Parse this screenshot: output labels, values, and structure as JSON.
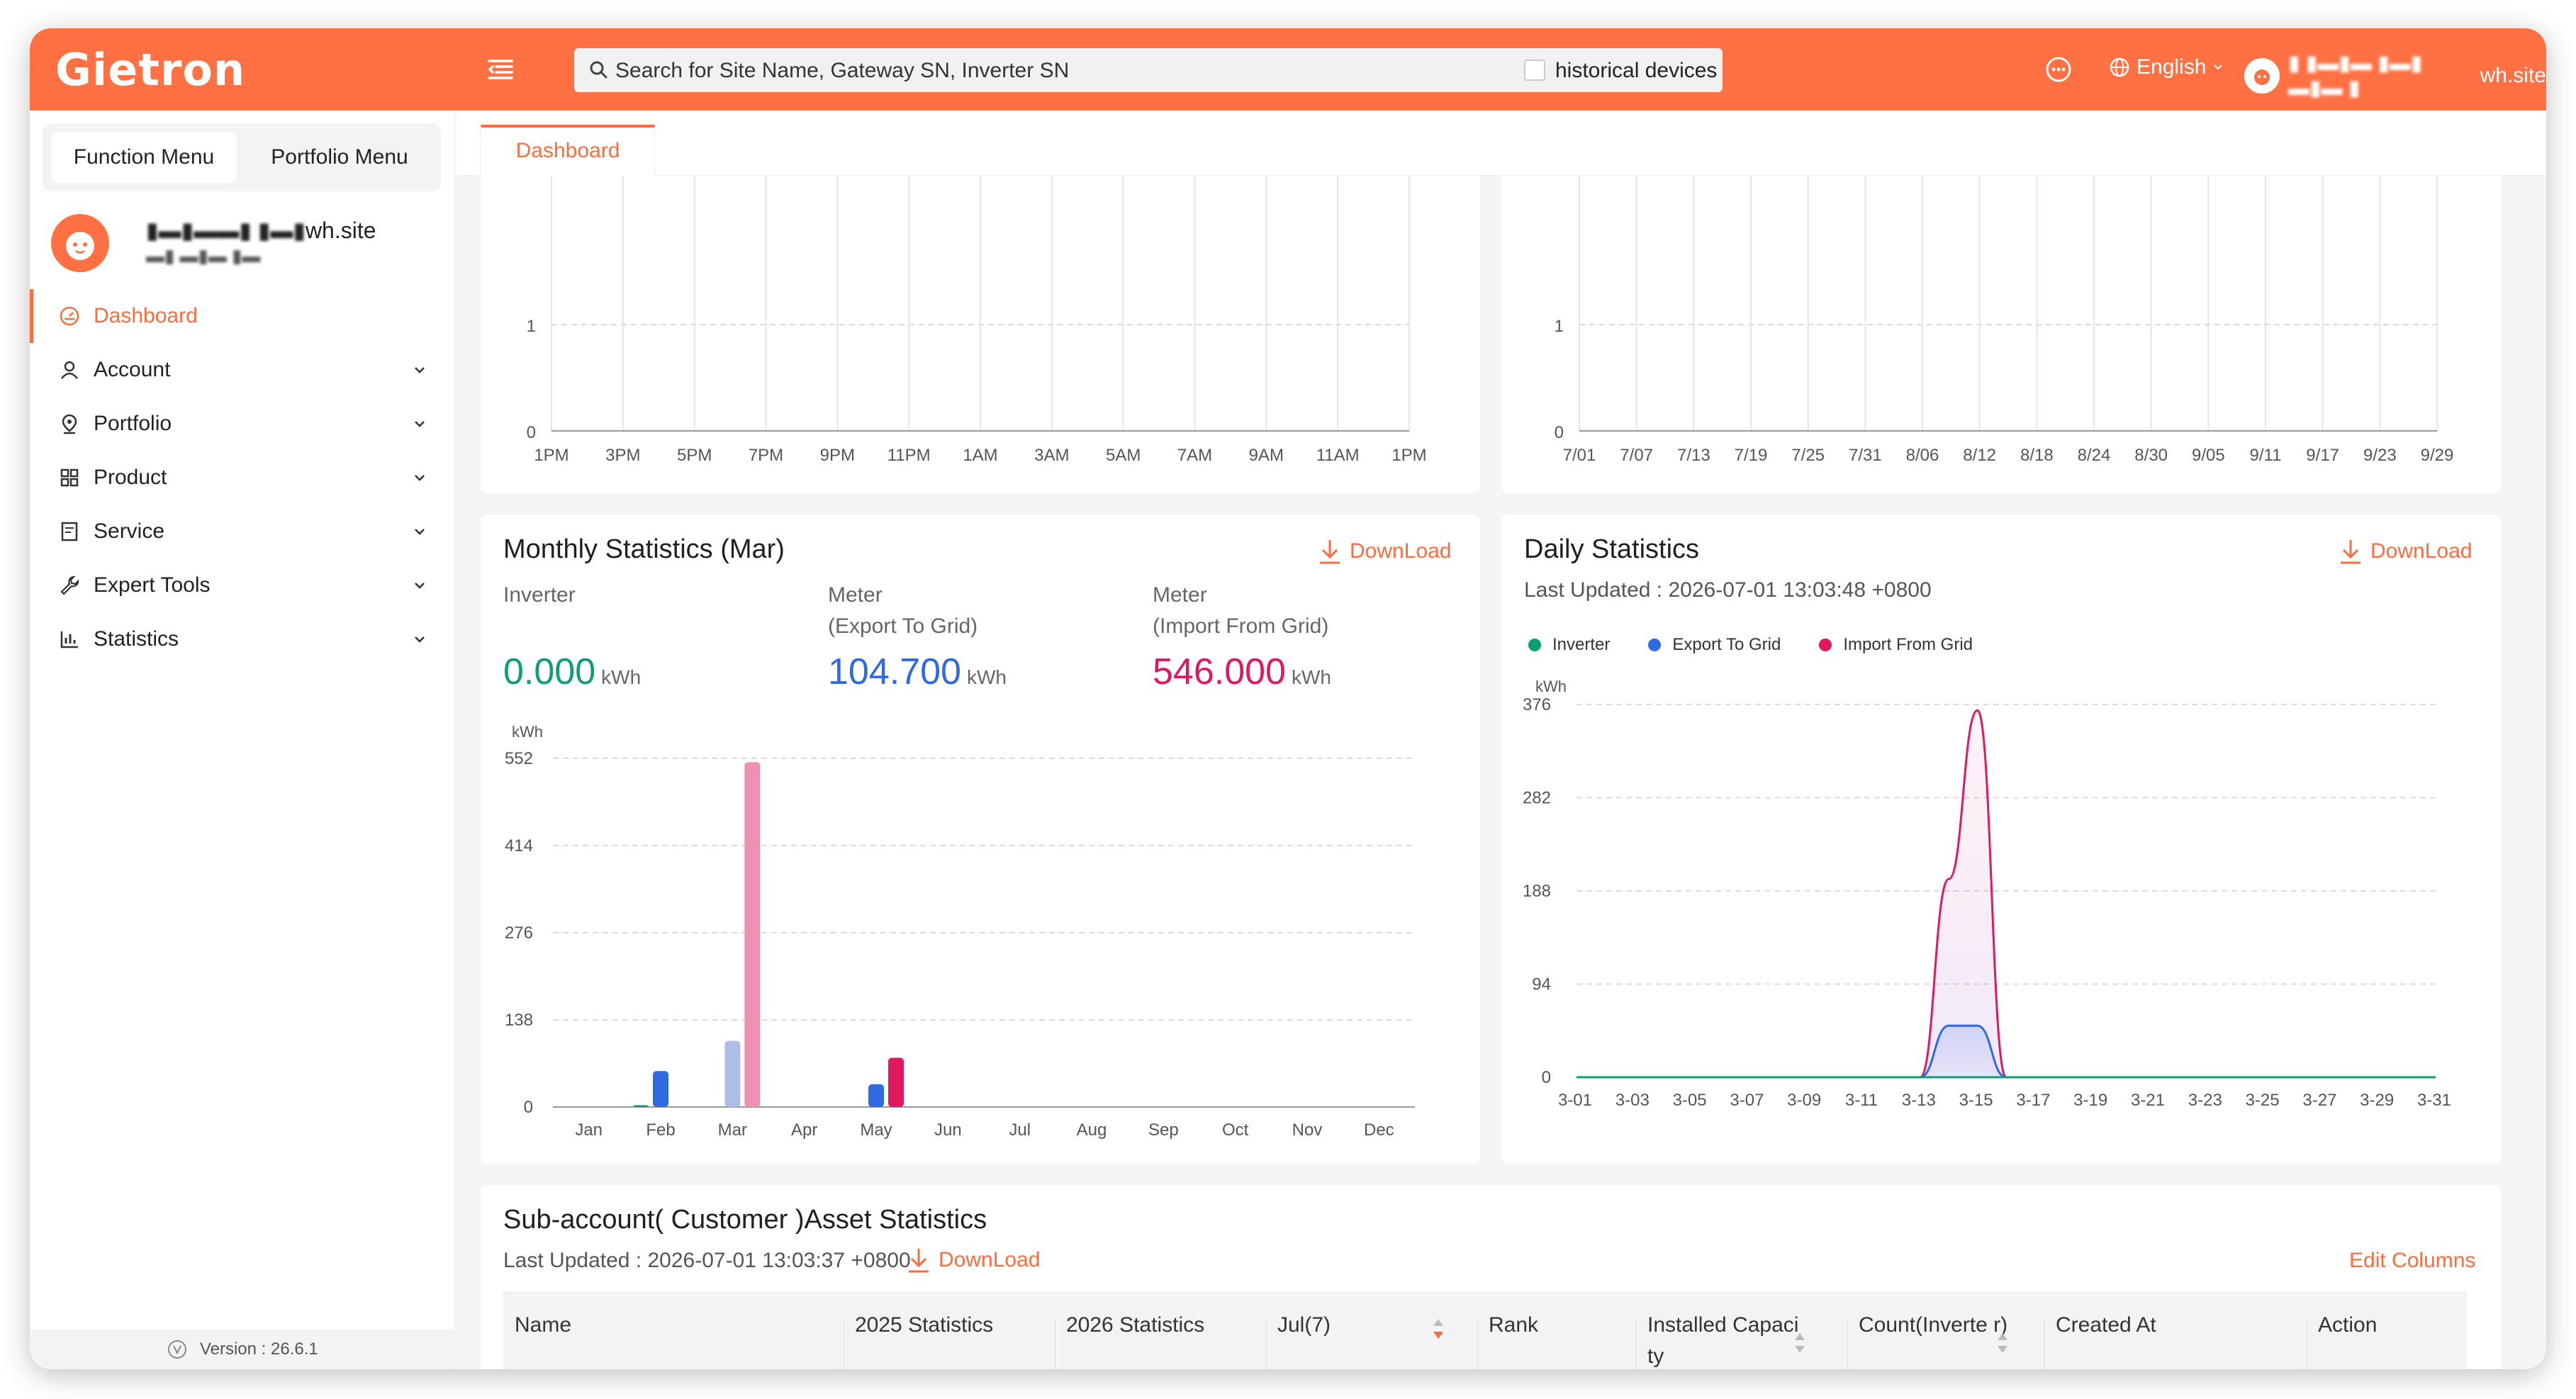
{
  "header": {
    "logo": "Gietron",
    "search_placeholder": "Search for Site Name, Gateway SN, Inverter SN",
    "historical_label": "historical devices",
    "language": "English",
    "user_label": "wh.site"
  },
  "sidebar": {
    "tabs": [
      "Function Menu",
      "Portfolio Menu"
    ],
    "user_email": "wh.site",
    "items": [
      {
        "label": "Dashboard",
        "icon": "dashboard-icon"
      },
      {
        "label": "Account",
        "icon": "user-icon"
      },
      {
        "label": "Portfolio",
        "icon": "location-icon"
      },
      {
        "label": "Product",
        "icon": "grid-icon"
      },
      {
        "label": "Service",
        "icon": "document-icon"
      },
      {
        "label": "Expert Tools",
        "icon": "wrench-icon"
      },
      {
        "label": "Statistics",
        "icon": "bar-chart-icon"
      }
    ],
    "version": "Version : 26.6.1"
  },
  "tabs": {
    "active": "Dashboard"
  },
  "top_left_chart": {
    "y_ticks": [
      "1",
      "0"
    ],
    "x_ticks": [
      "1PM",
      "3PM",
      "5PM",
      "7PM",
      "9PM",
      "11PM",
      "1AM",
      "3AM",
      "5AM",
      "7AM",
      "9AM",
      "11AM",
      "1PM"
    ]
  },
  "top_right_chart": {
    "y_ticks": [
      "1",
      "0"
    ],
    "x_ticks": [
      "7/01",
      "7/07",
      "7/13",
      "7/19",
      "7/25",
      "7/31",
      "8/06",
      "8/12",
      "8/18",
      "8/24",
      "8/30",
      "9/05",
      "9/11",
      "9/17",
      "9/23",
      "9/29"
    ]
  },
  "monthly": {
    "title": "Monthly Statistics (Mar)",
    "download": "DownLoad",
    "stats": [
      {
        "label1": "",
        "label2": "Inverter",
        "value": "0.000",
        "unit": "kWh",
        "color": "#0f9d76"
      },
      {
        "label1": "Meter",
        "label2": "(Export To Grid)",
        "value": "104.700",
        "unit": "kWh",
        "color": "#2f6ae0"
      },
      {
        "label1": "Meter",
        "label2": "(Import From Grid)",
        "value": "546.000",
        "unit": "kWh",
        "color": "#e0195f"
      }
    ]
  },
  "daily": {
    "title": "Daily Statistics",
    "download": "DownLoad",
    "last_updated": "Last Updated : 2026-07-01 13:03:48 +0800",
    "legend": [
      {
        "name": "Inverter",
        "color": "#0f9d76"
      },
      {
        "name": "Export To Grid",
        "color": "#2f6ae0"
      },
      {
        "name": "Import From Grid",
        "color": "#e0195f"
      }
    ]
  },
  "subaccount": {
    "title": "Sub-account( Customer )Asset Statistics",
    "last_updated": "Last Updated : 2026-07-01 13:03:37 +0800",
    "download": "DownLoad",
    "edit_columns": "Edit Columns",
    "columns": [
      "Name",
      "2025 Statistics",
      "2026 Statistics",
      "Jul(7)",
      "Rank",
      "Installed Capaci ty",
      "Count(Inverte r)",
      "Created At",
      "Action"
    ]
  },
  "chart_data": [
    {
      "type": "line",
      "x": [
        "1PM",
        "3PM",
        "5PM",
        "7PM",
        "9PM",
        "11PM",
        "1AM",
        "3AM",
        "5AM",
        "7AM",
        "9AM",
        "11AM",
        "1PM"
      ],
      "y_ticks": [
        0,
        1
      ],
      "series": []
    },
    {
      "type": "line",
      "x": [
        "7/01",
        "7/07",
        "7/13",
        "7/19",
        "7/25",
        "7/31",
        "8/06",
        "8/12",
        "8/18",
        "8/24",
        "8/30",
        "9/05",
        "9/11",
        "9/17",
        "9/23",
        "9/29"
      ],
      "y_ticks": [
        0,
        1
      ],
      "series": []
    },
    {
      "type": "bar",
      "ylabel": "kWh",
      "ylim": [
        0,
        552
      ],
      "y_ticks": [
        0,
        138,
        276,
        414,
        552
      ],
      "categories": [
        "Jan",
        "Feb",
        "Mar",
        "Apr",
        "May",
        "Jun",
        "Jul",
        "Aug",
        "Sep",
        "Oct",
        "Nov",
        "Dec"
      ],
      "series": [
        {
          "name": "Inverter",
          "values": [
            0,
            3,
            0,
            0,
            0,
            0,
            0,
            0,
            0,
            0,
            0,
            0
          ],
          "color": "#0f9d76",
          "color_mar": "#0f9d76"
        },
        {
          "name": "Export To Grid",
          "values": [
            0,
            57,
            104.7,
            0,
            36,
            0,
            0,
            0,
            0,
            0,
            0,
            0
          ],
          "color": "#2f6ae0",
          "color_mar": "#aebde8"
        },
        {
          "name": "Import From Grid",
          "values": [
            0,
            0,
            546,
            0,
            78,
            0,
            0,
            0,
            0,
            0,
            0,
            0
          ],
          "color": "#e0195f",
          "color_mar": "#ef8fb2"
        }
      ]
    },
    {
      "type": "area",
      "ylabel": "kWh",
      "ylim": [
        0,
        376
      ],
      "y_ticks": [
        0,
        94,
        188,
        282,
        376
      ],
      "x_ticks": [
        "3-01",
        "3-03",
        "3-05",
        "3-07",
        "3-09",
        "3-11",
        "3-13",
        "3-15",
        "3-17",
        "3-19",
        "3-21",
        "3-23",
        "3-25",
        "3-27",
        "3-29",
        "3-31"
      ],
      "x": [
        1,
        12,
        13,
        14,
        15,
        16,
        31
      ],
      "series": [
        {
          "name": "Inverter",
          "values": [
            0,
            0,
            0,
            0,
            0,
            0,
            0
          ],
          "color": "#0f9d76"
        },
        {
          "name": "Export To Grid",
          "values": [
            0,
            0,
            0,
            52,
            52,
            0,
            0
          ],
          "color": "#2f6ae0"
        },
        {
          "name": "Import From Grid",
          "values": [
            0,
            0,
            0,
            200,
            370,
            0,
            0
          ],
          "color": "#e0195f"
        }
      ]
    }
  ]
}
